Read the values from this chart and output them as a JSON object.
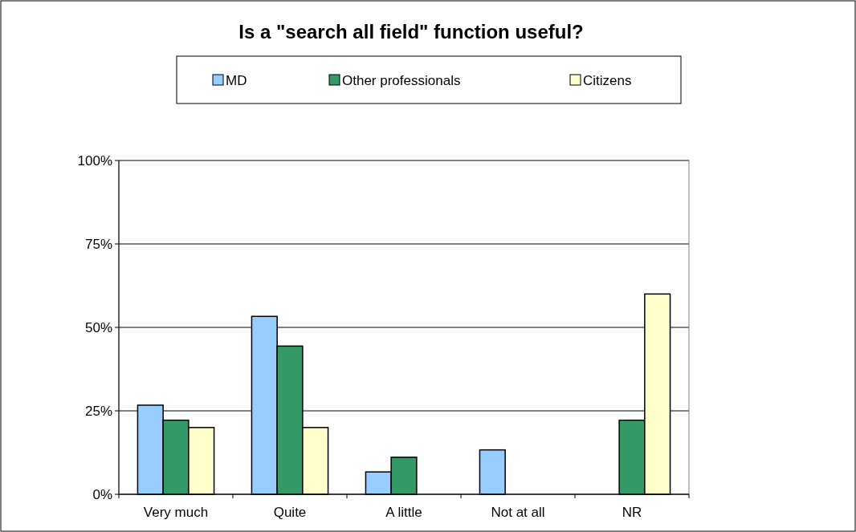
{
  "chart_data": {
    "type": "bar",
    "title": "Is a \"search all field\" function useful?",
    "categories": [
      "Very much",
      "Quite",
      "A little",
      "Not at all",
      "NR"
    ],
    "series": [
      {
        "name": "MD",
        "color": "#99ccff",
        "values": [
          26.7,
          53.3,
          6.7,
          13.3,
          0
        ]
      },
      {
        "name": "Other professionals",
        "color": "#339966",
        "values": [
          22.2,
          44.4,
          11.1,
          0,
          22.2
        ]
      },
      {
        "name": "Citizens",
        "color": "#ffffcc",
        "values": [
          20,
          20,
          0,
          0,
          60
        ]
      }
    ],
    "ylim": [
      0,
      100
    ],
    "yticks": [
      {
        "value": 0,
        "label": "0%"
      },
      {
        "value": 25,
        "label": "25%"
      },
      {
        "value": 50,
        "label": "50%"
      },
      {
        "value": 75,
        "label": "75%"
      },
      {
        "value": 100,
        "label": "100%"
      }
    ],
    "grid": "y",
    "legend": "top"
  }
}
